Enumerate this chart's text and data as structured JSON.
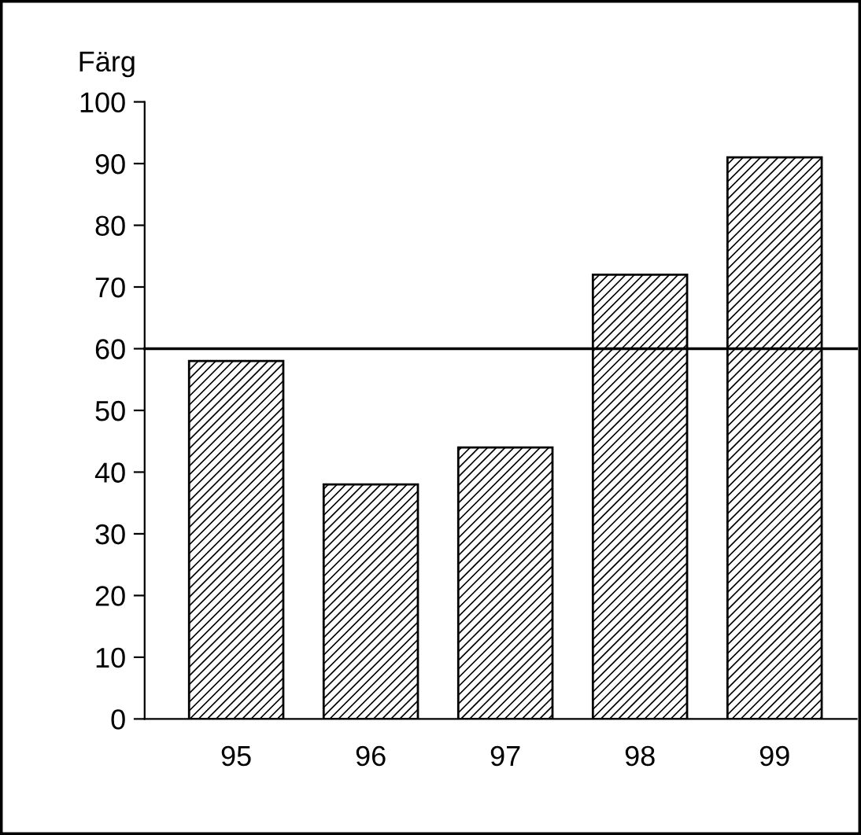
{
  "chart_data": {
    "type": "bar",
    "ylabel": "Färg",
    "categories": [
      "95",
      "96",
      "97",
      "98",
      "99"
    ],
    "values": [
      58,
      38,
      44,
      72,
      91
    ],
    "color": "#000000",
    "ylim": [
      0,
      100
    ],
    "yticks": [
      0,
      10,
      20,
      30,
      40,
      50,
      60,
      70,
      80,
      90,
      100
    ],
    "ref_lines": [
      {
        "axis": "y",
        "value": 60,
        "color": "#000000",
        "line_style": "solid"
      }
    ],
    "grid": false,
    "legend": false
  }
}
